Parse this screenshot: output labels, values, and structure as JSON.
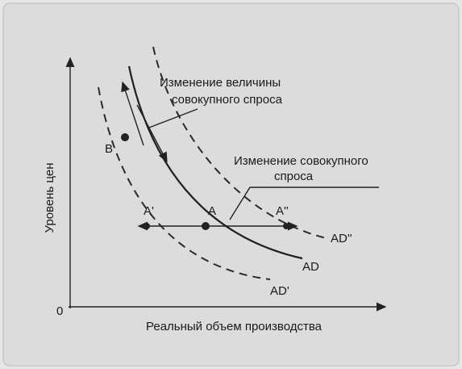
{
  "diagram": {
    "y_axis_label": "Уровень цен",
    "x_axis_label": "Реальный объем производства",
    "origin": "0",
    "quantity_change_label": [
      "Изменение величины",
      "совокупного спроса"
    ],
    "demand_change_label": [
      "Изменение совокупного",
      "спроса"
    ],
    "points": {
      "b": "B",
      "a": "A",
      "a_prime": "A'",
      "a_double": "A''"
    },
    "curves": {
      "ad": "AD",
      "ad_prime": "AD'",
      "ad_double": "AD''"
    }
  }
}
